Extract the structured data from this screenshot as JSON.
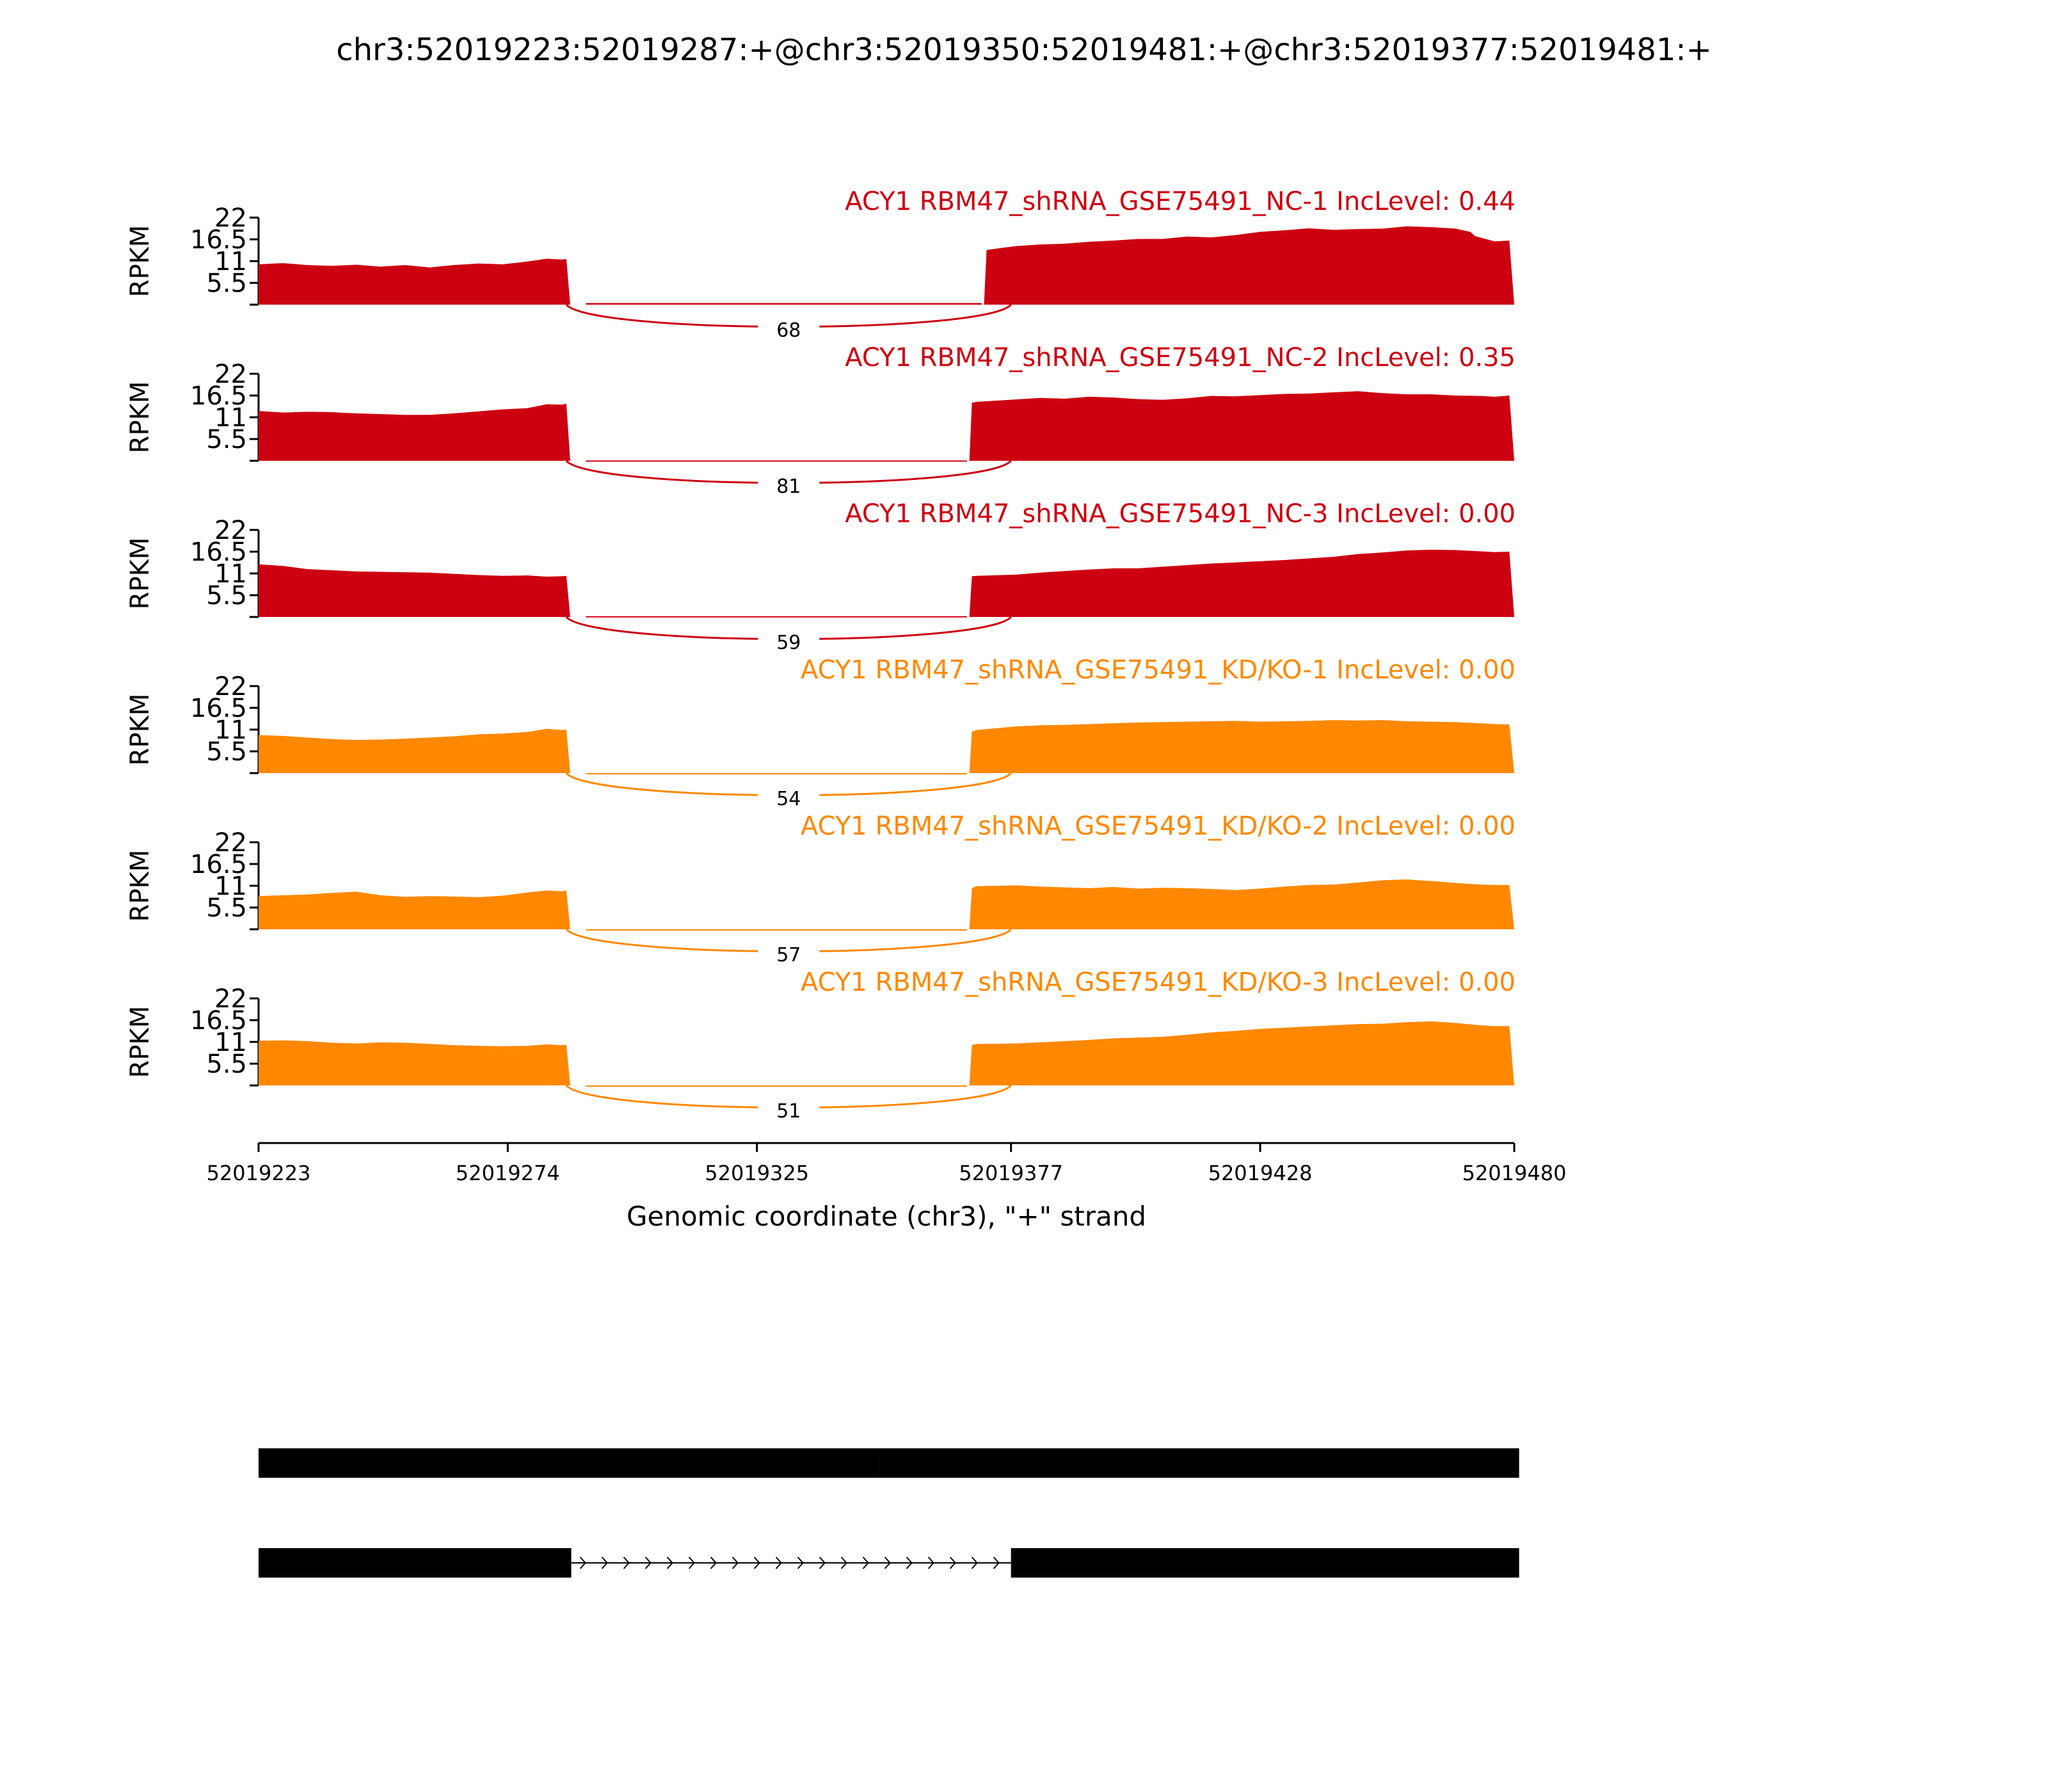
{
  "title": "chr3:52019223:52019287:+@chr3:52019350:52019481:+@chr3:52019377:52019481:+",
  "chart_data": {
    "type": "area",
    "title": "chr3:52019223:52019287:+@chr3:52019350:52019481:+@chr3:52019377:52019481:+",
    "xlabel": "Genomic coordinate (chr3), \"+\" strand",
    "ylabel": "RPKM",
    "xlim": [
      52019223,
      52019480
    ],
    "ylim": [
      0,
      22
    ],
    "x_ticks": [
      "52019223",
      "52019274",
      "52019325",
      "52019377",
      "52019428",
      "52019480"
    ],
    "y_ticks": [
      "5.5",
      "11",
      "16.5",
      "22"
    ],
    "grid": false,
    "colors": {
      "NC": "#cc0011",
      "KD": "#ff8800"
    },
    "series": [
      {
        "name": "ACY1 RBM47_shRNA_GSE75491_NC-1 IncLevel: 0.44",
        "color": "#cc0011",
        "junction_count": "68",
        "low_region": {
          "from": 52019290,
          "to": 52019371,
          "value": 0.4
        },
        "x": [
          52019223,
          52019228,
          52019233,
          52019238,
          52019243,
          52019248,
          52019253,
          52019258,
          52019263,
          52019268,
          52019273,
          52019278,
          52019282,
          52019285,
          52019286,
          52019372,
          52019373,
          52019378,
          52019383,
          52019388,
          52019393,
          52019398,
          52019403,
          52019408,
          52019413,
          52019418,
          52019423,
          52019428,
          52019433,
          52019438,
          52019443,
          52019448,
          52019453,
          52019458,
          52019463,
          52019468,
          52019471,
          52019472,
          52019476,
          52019479
        ],
        "values": [
          10.2,
          10.5,
          10.0,
          9.8,
          10.1,
          9.6,
          10.0,
          9.4,
          10.0,
          10.4,
          10.2,
          10.9,
          11.6,
          11.4,
          11.5,
          13.8,
          14.0,
          14.8,
          15.2,
          15.4,
          15.9,
          16.2,
          16.6,
          16.6,
          17.2,
          17.0,
          17.6,
          18.4,
          18.8,
          19.3,
          18.9,
          19.1,
          19.2,
          19.8,
          19.6,
          19.2,
          18.4,
          17.3,
          16.0,
          16.2
        ]
      },
      {
        "name": "ACY1 RBM47_shRNA_GSE75491_NC-2 IncLevel: 0.35",
        "color": "#cc0011",
        "junction_count": "81",
        "low_region": {
          "from": 52019290,
          "to": 52019368,
          "value": 0.1
        },
        "x": [
          52019223,
          52019228,
          52019233,
          52019238,
          52019243,
          52019248,
          52019253,
          52019258,
          52019263,
          52019268,
          52019273,
          52019278,
          52019282,
          52019285,
          52019286,
          52019369,
          52019370,
          52019378,
          52019383,
          52019388,
          52019393,
          52019398,
          52019403,
          52019408,
          52019413,
          52019418,
          52019423,
          52019428,
          52019433,
          52019438,
          52019443,
          52019448,
          52019453,
          52019458,
          52019463,
          52019468,
          52019473,
          52019476,
          52019479
        ],
        "values": [
          12.6,
          12.2,
          12.4,
          12.3,
          12.0,
          11.8,
          11.6,
          11.6,
          12.0,
          12.5,
          13.0,
          13.3,
          14.3,
          14.2,
          14.4,
          14.7,
          14.9,
          15.5,
          15.9,
          15.7,
          16.2,
          16.0,
          15.6,
          15.4,
          15.8,
          16.4,
          16.3,
          16.6,
          16.9,
          17.0,
          17.3,
          17.6,
          17.1,
          16.8,
          16.8,
          16.5,
          16.4,
          16.2,
          16.5
        ]
      },
      {
        "name": "ACY1 RBM47_shRNA_GSE75491_NC-3 IncLevel: 0.00",
        "color": "#cc0011",
        "junction_count": "59",
        "low_region": {
          "from": 52019290,
          "to": 52019368,
          "value": 0.2
        },
        "x": [
          52019223,
          52019228,
          52019233,
          52019238,
          52019243,
          52019248,
          52019253,
          52019258,
          52019263,
          52019268,
          52019273,
          52019278,
          52019282,
          52019285,
          52019286,
          52019369,
          52019370,
          52019378,
          52019383,
          52019388,
          52019393,
          52019398,
          52019403,
          52019408,
          52019413,
          52019418,
          52019423,
          52019428,
          52019433,
          52019438,
          52019443,
          52019448,
          52019453,
          52019458,
          52019463,
          52019468,
          52019473,
          52019476,
          52019479
        ],
        "values": [
          13.3,
          12.9,
          12.1,
          11.8,
          11.5,
          11.4,
          11.3,
          11.2,
          10.9,
          10.6,
          10.4,
          10.5,
          10.2,
          10.3,
          10.4,
          10.3,
          10.4,
          10.7,
          11.2,
          11.6,
          12.0,
          12.3,
          12.3,
          12.7,
          13.1,
          13.5,
          13.8,
          14.1,
          14.4,
          14.8,
          15.2,
          15.9,
          16.3,
          16.8,
          17.0,
          16.9,
          16.6,
          16.4,
          16.5
        ]
      },
      {
        "name": "ACY1 RBM47_shRNA_GSE75491_KD/KO-1 IncLevel: 0.00",
        "color": "#ff8800",
        "junction_count": "54",
        "low_region": {
          "from": 52019290,
          "to": 52019368,
          "value": 0.0
        },
        "x": [
          52019223,
          52019228,
          52019233,
          52019238,
          52019243,
          52019248,
          52019253,
          52019258,
          52019263,
          52019268,
          52019273,
          52019278,
          52019282,
          52019285,
          52019286,
          52019369,
          52019370,
          52019378,
          52019383,
          52019388,
          52019393,
          52019398,
          52019403,
          52019408,
          52019413,
          52019418,
          52019423,
          52019428,
          52019433,
          52019438,
          52019443,
          52019448,
          52019453,
          52019458,
          52019463,
          52019468,
          52019473,
          52019476,
          52019479
        ],
        "values": [
          9.6,
          9.4,
          9.0,
          8.6,
          8.4,
          8.5,
          8.7,
          9.0,
          9.3,
          9.8,
          10.0,
          10.4,
          11.2,
          10.9,
          11.0,
          10.5,
          10.9,
          11.8,
          12.1,
          12.2,
          12.4,
          12.6,
          12.8,
          12.9,
          13.0,
          13.1,
          13.2,
          13.0,
          13.1,
          13.2,
          13.4,
          13.3,
          13.4,
          13.1,
          13.0,
          12.9,
          12.6,
          12.4,
          12.3
        ]
      },
      {
        "name": "ACY1 RBM47_shRNA_GSE75491_KD/KO-2 IncLevel: 0.00",
        "color": "#ff8800",
        "junction_count": "57",
        "low_region": {
          "from": 52019290,
          "to": 52019368,
          "value": 0.0
        },
        "x": [
          52019223,
          52019228,
          52019233,
          52019238,
          52019243,
          52019248,
          52019253,
          52019258,
          52019263,
          52019268,
          52019273,
          52019278,
          52019282,
          52019285,
          52019286,
          52019369,
          52019370,
          52019378,
          52019383,
          52019388,
          52019393,
          52019398,
          52019403,
          52019408,
          52019413,
          52019418,
          52019423,
          52019428,
          52019433,
          52019438,
          52019443,
          52019448,
          52019453,
          52019458,
          52019463,
          52019468,
          52019473,
          52019476,
          52019479
        ],
        "values": [
          8.4,
          8.6,
          8.8,
          9.2,
          9.5,
          8.6,
          8.2,
          8.4,
          8.3,
          8.1,
          8.5,
          9.3,
          9.8,
          9.6,
          9.8,
          10.4,
          10.9,
          11.1,
          10.8,
          10.6,
          10.4,
          10.7,
          10.3,
          10.5,
          10.4,
          10.2,
          9.9,
          10.3,
          10.8,
          11.2,
          11.3,
          11.8,
          12.4,
          12.6,
          12.2,
          11.7,
          11.3,
          11.2,
          11.2
        ]
      },
      {
        "name": "ACY1 RBM47_shRNA_GSE75491_KD/KO-3 IncLevel: 0.00",
        "color": "#ff8800",
        "junction_count": "51",
        "low_region": {
          "from": 52019290,
          "to": 52019368,
          "value": 0.0
        },
        "x": [
          52019223,
          52019228,
          52019233,
          52019238,
          52019243,
          52019248,
          52019253,
          52019258,
          52019263,
          52019268,
          52019273,
          52019278,
          52019282,
          52019285,
          52019286,
          52019369,
          52019370,
          52019378,
          52019383,
          52019388,
          52019393,
          52019398,
          52019403,
          52019408,
          52019413,
          52019418,
          52019423,
          52019428,
          52019433,
          52019438,
          52019443,
          52019448,
          52019453,
          52019458,
          52019463,
          52019468,
          52019473,
          52019476,
          52019479
        ],
        "values": [
          11.3,
          11.4,
          11.2,
          10.8,
          10.6,
          10.9,
          10.8,
          10.5,
          10.2,
          10.0,
          9.9,
          10.0,
          10.4,
          10.2,
          10.3,
          10.2,
          10.5,
          10.6,
          10.9,
          11.2,
          11.5,
          11.9,
          12.1,
          12.3,
          12.8,
          13.4,
          13.8,
          14.3,
          14.6,
          14.9,
          15.2,
          15.5,
          15.6,
          16.0,
          16.2,
          15.8,
          15.2,
          15.0,
          15.0
        ]
      }
    ],
    "gene_models": [
      {
        "exons": [
          [
            52019223,
            52019287
          ],
          [
            52019286,
            52019350
          ],
          [
            52019350,
            52019481
          ]
        ],
        "intron": [
          52019287,
          52019350
        ]
      },
      {
        "exons": [
          [
            52019223,
            52019287
          ],
          [
            52019377,
            52019481
          ]
        ],
        "intron": [
          52019287,
          52019377
        ]
      }
    ]
  }
}
